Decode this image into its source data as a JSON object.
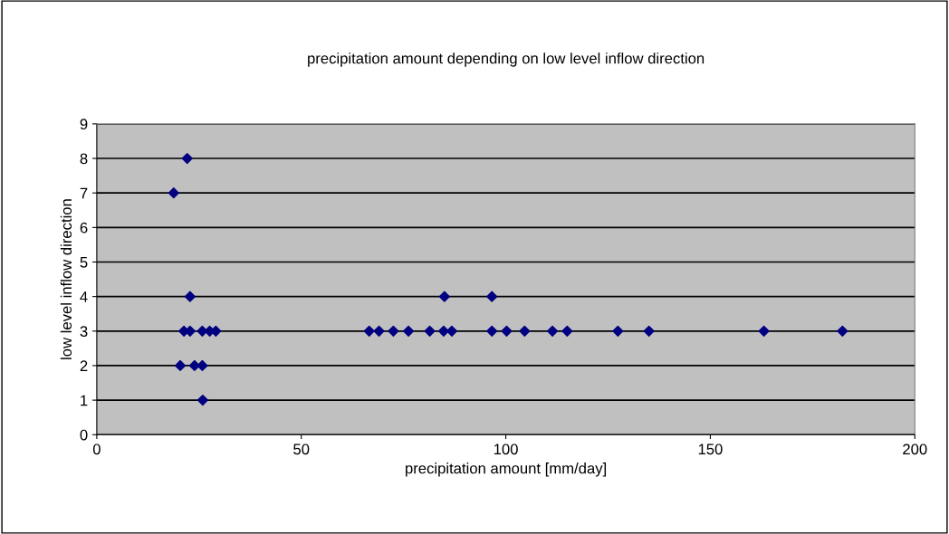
{
  "chart_data": {
    "type": "scatter",
    "title": "precipitation amount depending on low level inflow direction",
    "xlabel": "precipitation amount [mm/day]",
    "ylabel": "low level inflow direction",
    "series": [
      {
        "color": "#000080",
        "x": [
          22.1,
          18.8,
          22.8,
          21.3,
          22.8,
          25.8,
          27.6,
          29.1,
          20.4,
          23.9,
          25.8,
          25.9,
          85.0,
          96.6,
          66.6,
          69.0,
          72.5,
          76.2,
          81.4,
          84.8,
          86.8,
          96.6,
          100.2,
          104.6,
          111.4,
          115.0,
          127.4,
          135.0,
          163.1,
          182.3
        ],
        "values": [
          8,
          7,
          4,
          3,
          3,
          3,
          3,
          3,
          2,
          2,
          2,
          1,
          4,
          4,
          3,
          3,
          3,
          3,
          3,
          3,
          3,
          3,
          3,
          3,
          3,
          3,
          3,
          3,
          3,
          3
        ]
      }
    ],
    "xlim": [
      0,
      200
    ],
    "ylim": [
      0,
      9
    ],
    "xticks": [
      0,
      50,
      100,
      150,
      200
    ],
    "yticks": [
      0,
      1,
      2,
      3,
      4,
      5,
      6,
      7,
      8,
      9
    ],
    "grid": "y",
    "marker": "diamond",
    "legend": false
  }
}
